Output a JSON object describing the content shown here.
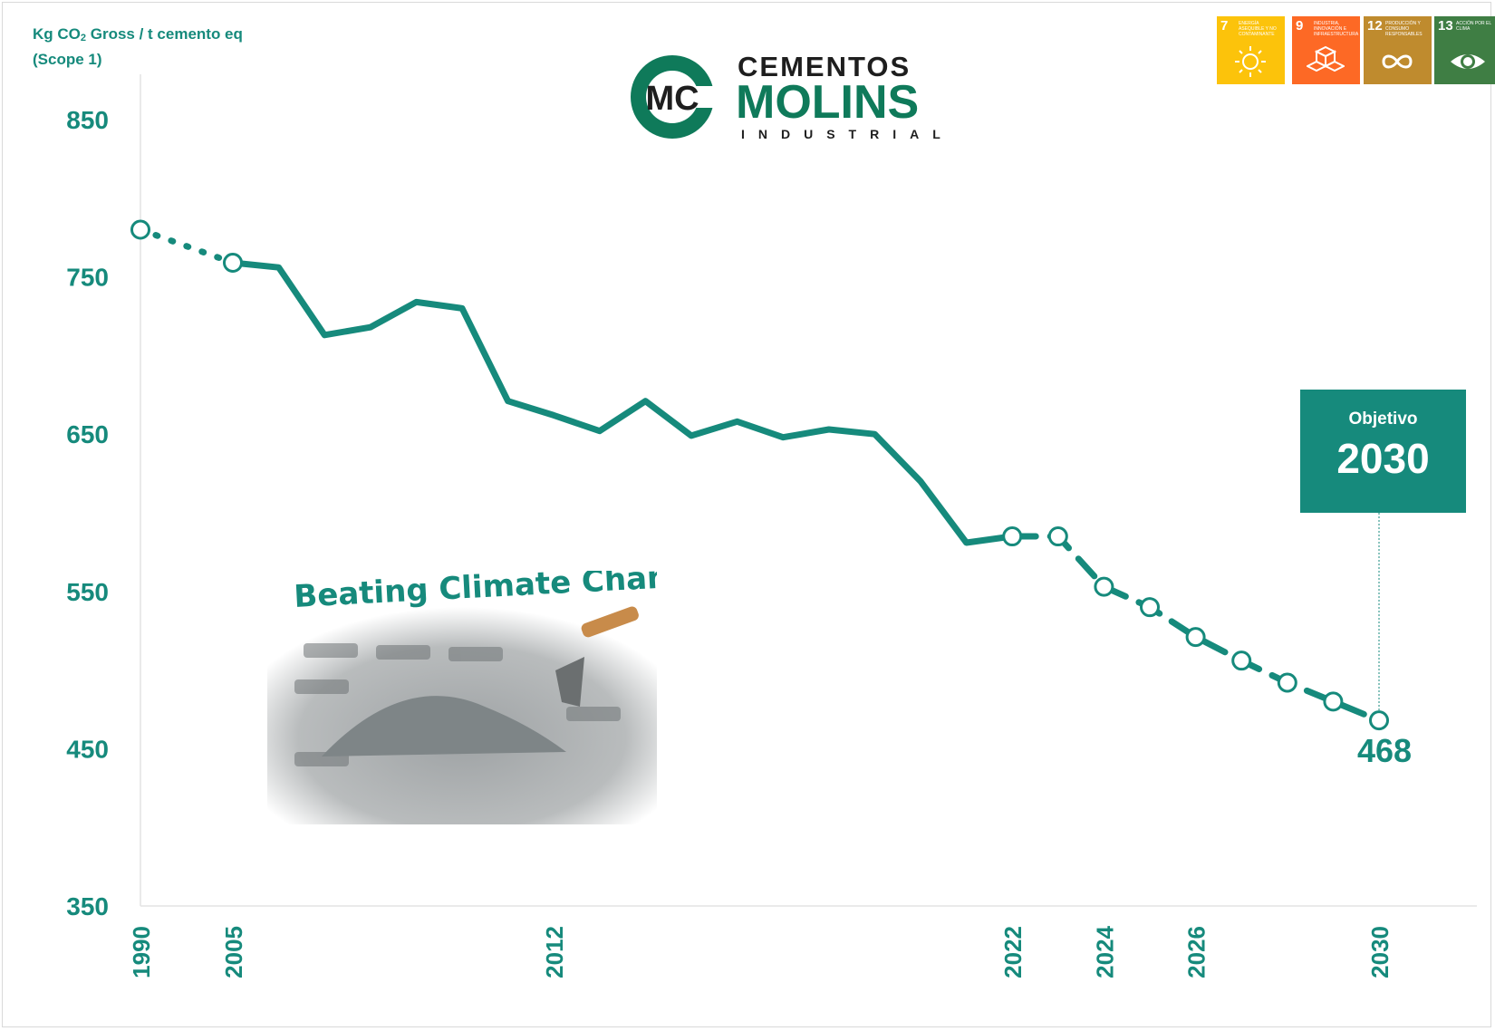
{
  "y_axis_title": {
    "line1_prefix": "Kg CO",
    "line1_sub": "2",
    "line1_suffix": " Gross / t cemento eq",
    "line2": "(Scope 1)"
  },
  "logo": {
    "word1": "CEMENTOS",
    "word2": "MOLINS",
    "word3": "INDUSTRIAL",
    "monogram": "MC"
  },
  "sdg_icons": [
    {
      "number": "7",
      "text": "Energía asequible y no contaminante",
      "color": "#fcc30b",
      "icon": "sun-icon"
    },
    {
      "number": "9",
      "text": "Industria, innovación e infraestructura",
      "color": "#fd6925",
      "icon": "cubes-icon"
    },
    {
      "number": "12",
      "text": "Producción y consumo responsables",
      "color": "#bf8b2e",
      "icon": "infinity-icon"
    },
    {
      "number": "13",
      "text": "Acción por el clima",
      "color": "#3f7e44",
      "icon": "eye-globe-icon"
    }
  ],
  "target": {
    "label": "Objetivo",
    "year": "2030",
    "value_label": "468"
  },
  "illustration_caption": "Beating Climate Change",
  "chart_data": {
    "type": "line",
    "title": "",
    "ylabel": "Kg CO2 Gross / t cemento eq (Scope 1)",
    "ylim": [
      350,
      850
    ],
    "yticks": [
      350,
      450,
      550,
      650,
      750,
      850
    ],
    "x_tick_labels": [
      "1990",
      "2005",
      "2012",
      "2022",
      "2024",
      "2026",
      "2030"
    ],
    "line_color": "#168a7c",
    "grid": false,
    "series": [
      {
        "segment": "dotted",
        "x": [
          1990,
          2005
        ],
        "y": [
          780,
          759
        ]
      },
      {
        "segment": "solid",
        "x": [
          2005,
          2006,
          2007,
          2008,
          2009,
          2010,
          2011,
          2012,
          2013,
          2014,
          2015,
          2016,
          2017,
          2018,
          2019,
          2020,
          2021,
          2022
        ],
        "y": [
          759,
          756,
          713,
          718,
          734,
          730,
          671,
          662,
          652,
          671,
          649,
          658,
          648,
          653,
          650,
          620,
          581,
          585
        ]
      },
      {
        "segment": "dashed",
        "x": [
          2022,
          2023,
          2024,
          2025,
          2026,
          2027,
          2028,
          2029,
          2030
        ],
        "y": [
          585,
          585,
          553,
          540,
          521,
          506,
          492,
          480,
          468
        ]
      }
    ],
    "markers": [
      {
        "x": 1990,
        "y": 780
      },
      {
        "x": 2005,
        "y": 759
      },
      {
        "x": 2022,
        "y": 585
      },
      {
        "x": 2023,
        "y": 585
      },
      {
        "x": 2024,
        "y": 553
      },
      {
        "x": 2025,
        "y": 540
      },
      {
        "x": 2026,
        "y": 521
      },
      {
        "x": 2027,
        "y": 506
      },
      {
        "x": 2028,
        "y": 492
      },
      {
        "x": 2029,
        "y": 480
      },
      {
        "x": 2030,
        "y": 468
      }
    ]
  }
}
